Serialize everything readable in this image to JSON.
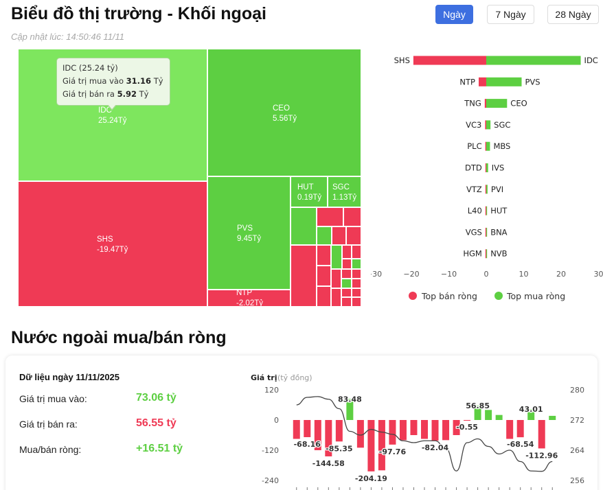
{
  "header": {
    "title": "Biểu đồ thị trường - Khối ngoại",
    "updated": "Cập nhật lúc: 14:50:46 11/11",
    "ranges": [
      {
        "label": "Ngày",
        "active": true
      },
      {
        "label": "7 Ngày",
        "active": false
      },
      {
        "label": "28 Ngày",
        "active": false
      }
    ]
  },
  "colors": {
    "buy": "#5dcf42",
    "sell": "#ef3a55",
    "highlight": "#7ee65e",
    "accent": "#3d6fe0"
  },
  "treemap": {
    "labeled": [
      {
        "code": "IDC",
        "value": "25.24Tỷ"
      },
      {
        "code": "CEO",
        "value": "5.56Tỷ"
      },
      {
        "code": "SHS",
        "value": "-19.47Tỷ"
      },
      {
        "code": "PVS",
        "value": "9.45Tỷ"
      },
      {
        "code": "HUT",
        "value": "0.19Tỷ"
      },
      {
        "code": "SGC",
        "value": "1.13Tỷ"
      },
      {
        "code": "NTP",
        "value": "-2.02Tỷ"
      }
    ],
    "tooltip": {
      "title": "IDC (25.24 tỷ)",
      "buy_label": "Giá trị mua vào",
      "buy_value": "31.16",
      "sell_label": "Giá trị bán ra",
      "sell_value": "5.92",
      "unit": "Tỷ"
    }
  },
  "top_chart": {
    "type": "bar",
    "orientation": "horizontal",
    "pairs": [
      {
        "sell": "SHS",
        "buy": "IDC",
        "sell_value": -19.47,
        "buy_value": 25.24
      },
      {
        "sell": "NTP",
        "buy": "PVS",
        "sell_value": -2.02,
        "buy_value": 9.45
      },
      {
        "sell": "TNG",
        "buy": "CEO",
        "sell_value": -0.4,
        "buy_value": 5.56
      },
      {
        "sell": "VC3",
        "buy": "SGC",
        "sell_value": -0.3,
        "buy_value": 1.13
      },
      {
        "sell": "PLC",
        "buy": "MBS",
        "sell_value": -0.25,
        "buy_value": 1.0
      },
      {
        "sell": "DTD",
        "buy": "IVS",
        "sell_value": -0.15,
        "buy_value": 0.5
      },
      {
        "sell": "VTZ",
        "buy": "PVI",
        "sell_value": -0.1,
        "buy_value": 0.35
      },
      {
        "sell": "L40",
        "buy": "HUT",
        "sell_value": -0.08,
        "buy_value": 0.19
      },
      {
        "sell": "VGS",
        "buy": "BNA",
        "sell_value": -0.05,
        "buy_value": 0.1
      },
      {
        "sell": "HGM",
        "buy": "NVB",
        "sell_value": -0.04,
        "buy_value": 0.08
      }
    ],
    "xticks": [
      "−30",
      "−20",
      "−10",
      "0",
      "10",
      "20",
      "30"
    ],
    "xlim": [
      -30,
      30
    ],
    "legend": {
      "sell": "Top bán ròng",
      "buy": "Top mua ròng"
    }
  },
  "net_section": {
    "title": "Nước ngoài mua/bán ròng",
    "date_label": "Dữ liệu ngày 11/11/2025",
    "stats": [
      {
        "label": "Giá trị mua vào:",
        "value": "73.06 tỷ",
        "kind": "buy"
      },
      {
        "label": "Giá trị bán ra:",
        "value": "56.55 tỷ",
        "kind": "sell"
      },
      {
        "label": "Mua/bán ròng:",
        "value": "+16.51 tỷ",
        "kind": "buy"
      }
    ]
  },
  "chart_data": {
    "type": "bar",
    "ylabel": "Giá trị",
    "ylabel_unit": "(tỷ đồng)",
    "ylim": [
      -240,
      120
    ],
    "yticks": [
      "120",
      "0",
      "-120",
      "-240"
    ],
    "y2lim": [
      256,
      280
    ],
    "y2ticks": [
      "280",
      "272",
      "264",
      "256"
    ],
    "values": [
      -75,
      -68.16,
      -120,
      -144.58,
      -85.35,
      83.48,
      -110,
      -204.19,
      -200,
      -97.76,
      -80,
      -60,
      -75,
      -82.04,
      -80,
      -60,
      -0.55,
      56.85,
      40,
      20,
      -75,
      -68.54,
      43.01,
      -112.96,
      16.51
    ],
    "data_labels": [
      {
        "index": 1,
        "text": "-68.16"
      },
      {
        "index": 3,
        "text": "-144.58"
      },
      {
        "index": 4,
        "text": "-85.35"
      },
      {
        "index": 5,
        "text": "83.48"
      },
      {
        "index": 7,
        "text": "-204.19"
      },
      {
        "index": 9,
        "text": "-97.76"
      },
      {
        "index": 13,
        "text": "-82.04"
      },
      {
        "index": 16,
        "text": "-0.55"
      },
      {
        "index": 17,
        "text": "56.85"
      },
      {
        "index": 21,
        "text": "-68.54"
      },
      {
        "index": 22,
        "text": "43.01"
      },
      {
        "index": 23,
        "text": "-112.96"
      }
    ],
    "index_series": [
      276,
      278,
      278.2,
      277.5,
      275,
      269,
      268,
      269.5,
      268.8,
      268.2,
      266.5,
      266,
      266.5,
      266.5,
      264.5,
      258.5,
      266,
      267,
      265,
      263,
      264,
      261,
      258.5,
      258.4,
      261
    ]
  }
}
